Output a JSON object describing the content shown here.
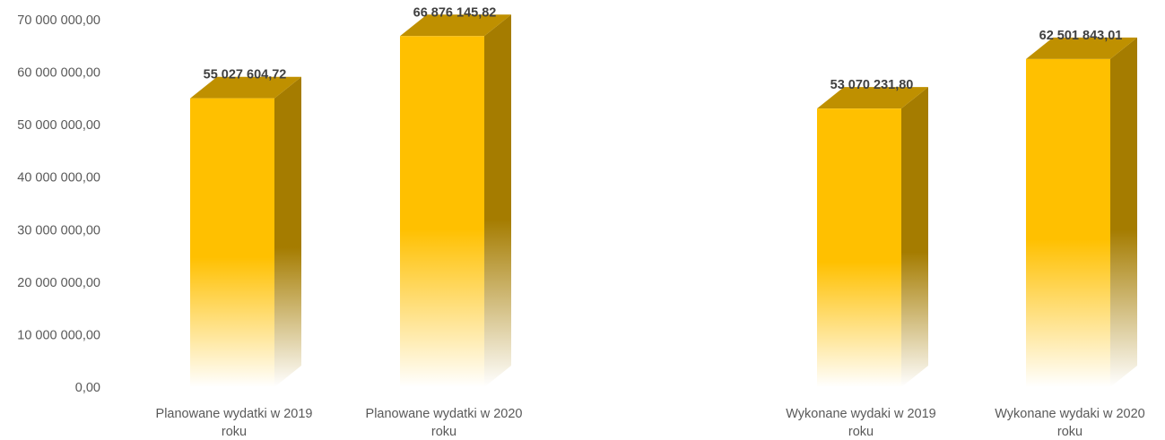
{
  "chart_data": {
    "type": "bar",
    "style": "3d-column",
    "categories": [
      [
        "Planowane wydatki w 2019",
        "roku"
      ],
      [
        "Planowane wydatki w 2020",
        "roku"
      ],
      [
        "Wykonane wydaki w 2019",
        "roku"
      ],
      [
        "Wykonane wydaki w 2020",
        "roku"
      ]
    ],
    "values": [
      55027604.72,
      66876145.82,
      53070231.8,
      62501843.01
    ],
    "data_labels": [
      "55 027 604,72",
      "66 876 145,82",
      "53 070 231,80",
      "62 501 843,01"
    ],
    "ylim": [
      0,
      70000000
    ],
    "yticks": [
      0,
      10000000,
      20000000,
      30000000,
      40000000,
      50000000,
      60000000,
      70000000
    ],
    "ytick_labels": [
      "0,00",
      "10 000 000,00",
      "20 000 000,00",
      "30 000 000,00",
      "40 000 000,00",
      "50 000 000,00",
      "60 000 000,00",
      "70 000 000,00"
    ],
    "title": "",
    "xlabel": "",
    "ylabel": "",
    "grid": false,
    "legend": "none",
    "colors": {
      "front_top": "#FFC000",
      "front_bottom": "#FFFFFF",
      "side_top": "#A57C00",
      "side_bottom": "#FFFFFF",
      "top_face": "#BF9000"
    }
  }
}
